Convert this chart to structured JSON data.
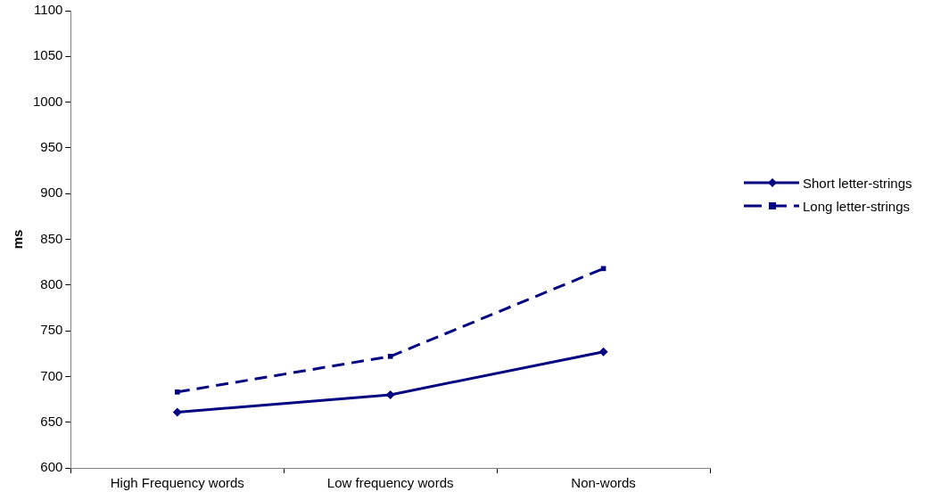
{
  "chart_data": {
    "type": "line",
    "ylabel": "ms",
    "categories": [
      "High Frequency words",
      "Low frequency words",
      "Non-words"
    ],
    "ylim": [
      600,
      1100
    ],
    "yticks": [
      600,
      650,
      700,
      750,
      800,
      850,
      900,
      950,
      1000,
      1050,
      1100
    ],
    "grid": false,
    "legend": "right",
    "series": [
      {
        "name": "Short letter-strings",
        "color": "#000080",
        "values": [
          661,
          680,
          727
        ],
        "marker": "diamond",
        "line_style": "solid"
      },
      {
        "name": "Long letter-strings",
        "color": "#000080",
        "values": [
          683,
          722,
          818
        ],
        "marker": "square",
        "line_style": "dashed"
      }
    ]
  }
}
